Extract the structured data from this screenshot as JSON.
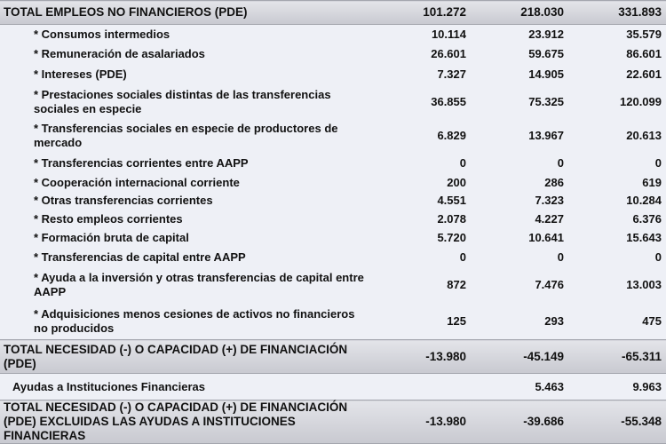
{
  "top_total": {
    "label": "TOTAL EMPLEOS NO FINANCIEROS (PDE)",
    "v1": "101.272",
    "v2": "218.030",
    "v3": "331.893"
  },
  "rows": [
    {
      "label": "* Consumos intermedios",
      "v1": "10.114",
      "v2": "23.912",
      "v3": "35.579"
    },
    {
      "label": "* Remuneración de asalariados",
      "v1": "26.601",
      "v2": "59.675",
      "v3": "86.601"
    },
    {
      "label": "* Intereses (PDE)",
      "v1": "7.327",
      "v2": "14.905",
      "v3": "22.601"
    },
    {
      "label": "* Prestaciones sociales distintas de las transferencias sociales en especie",
      "v1": "36.855",
      "v2": "75.325",
      "v3": "120.099"
    },
    {
      "label": "* Transferencias sociales en especie de productores de mercado",
      "v1": "6.829",
      "v2": "13.967",
      "v3": "20.613"
    },
    {
      "label": "* Transferencias corrientes entre AAPP",
      "v1": "0",
      "v2": "0",
      "v3": "0"
    },
    {
      "label": "* Cooperación internacional corriente",
      "v1": "200",
      "v2": "286",
      "v3": "619"
    },
    {
      "label": "* Otras transferencias corrientes",
      "v1": "4.551",
      "v2": "7.323",
      "v3": "10.284"
    },
    {
      "label": "* Resto empleos corrientes",
      "v1": "2.078",
      "v2": "4.227",
      "v3": "6.376"
    },
    {
      "label": "* Formación bruta de capital",
      "v1": "5.720",
      "v2": "10.641",
      "v3": "15.643"
    },
    {
      "label": "* Transferencias de capital entre AAPP",
      "v1": "0",
      "v2": "0",
      "v3": "0"
    },
    {
      "label": "* Ayuda a la inversión y otras transferencias de capital entre AAPP",
      "v1": "872",
      "v2": "7.476",
      "v3": "13.003"
    },
    {
      "label": "* Adquisiciones menos cesiones de activos no financieros no producidos",
      "v1": "125",
      "v2": "293",
      "v3": "475"
    }
  ],
  "total_financiacion": {
    "label": "TOTAL NECESIDAD (-) O CAPACIDAD (+) DE FINANCIACIÓN (PDE)",
    "v1": "-13.980",
    "v2": "-45.149",
    "v3": "-65.311"
  },
  "ayudas": {
    "label": "Ayudas a Instituciones Financieras",
    "v1": "",
    "v2": "5.463",
    "v3": "9.963"
  },
  "total_excluidas": {
    "label": "TOTAL NECESIDAD (-) O CAPACIDAD (+) DE FINANCIACIÓN (PDE) EXCLUIDAS LAS AYUDAS A INSTITUCIONES FINANCIERAS",
    "v1": "-13.980",
    "v2": "-39.686",
    "v3": "-55.348"
  }
}
